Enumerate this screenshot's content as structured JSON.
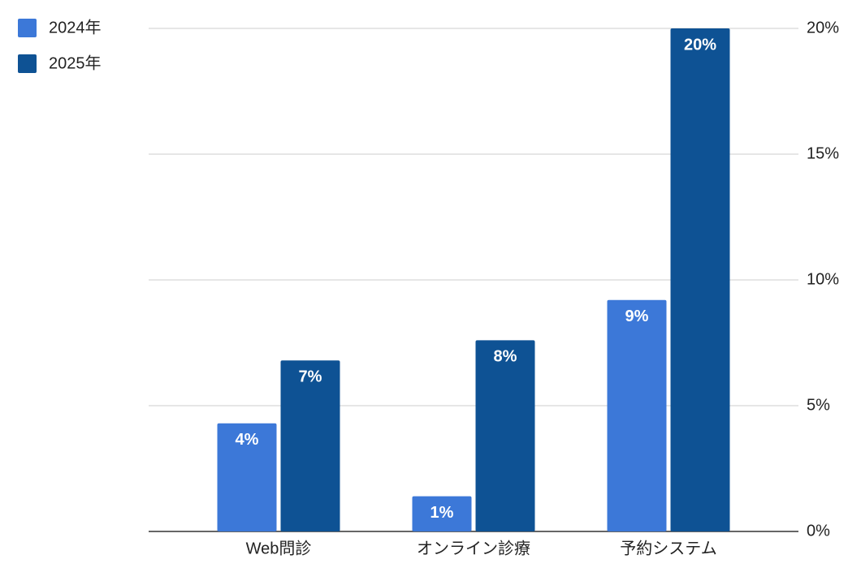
{
  "chart_data": {
    "type": "bar",
    "categories": [
      "Web問診",
      "オンライン診療",
      "予約システム"
    ],
    "series": [
      {
        "name": "2024年",
        "color": "#3c78d8",
        "values": [
          4.3,
          1.4,
          9.2
        ],
        "value_labels": [
          "4%",
          "1%",
          "9%"
        ]
      },
      {
        "name": "2025年",
        "color": "#0e5294",
        "values": [
          6.8,
          7.6,
          20
        ],
        "value_labels": [
          "7%",
          "8%",
          "20%"
        ]
      }
    ],
    "ylim": [
      0,
      20
    ],
    "yticks": [
      {
        "value": 0,
        "label": "0%"
      },
      {
        "value": 5,
        "label": "5%"
      },
      {
        "value": 10,
        "label": "10%"
      },
      {
        "value": 15,
        "label": "15%"
      },
      {
        "value": 20,
        "label": "20%"
      }
    ],
    "grid": true,
    "yaxis_side": "right",
    "legend": "top-left"
  }
}
